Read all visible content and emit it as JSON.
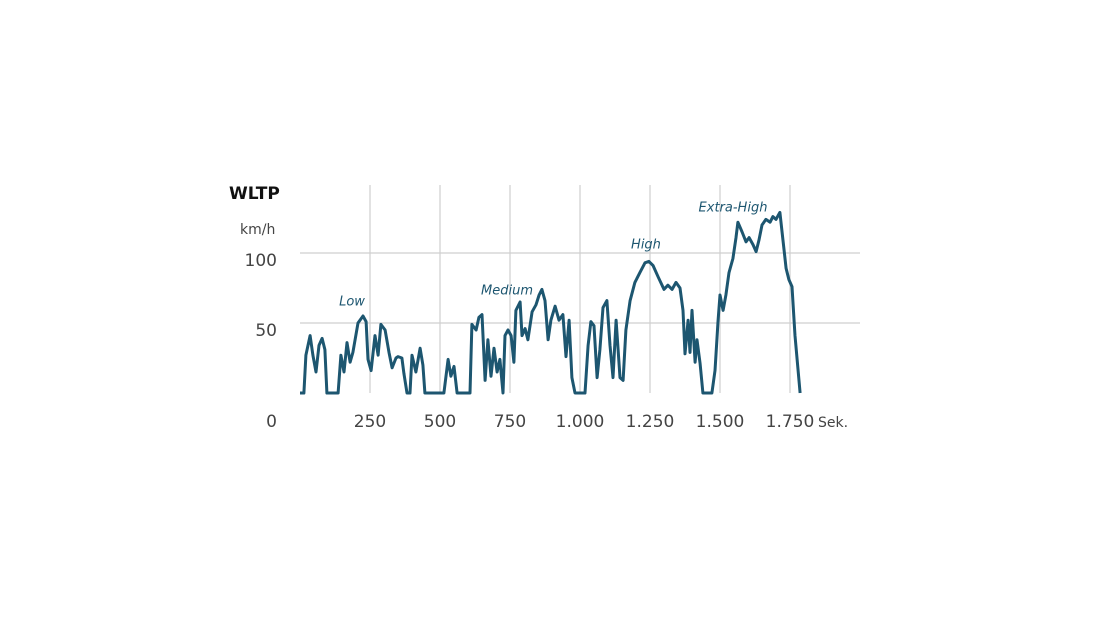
{
  "chart_data": {
    "type": "line",
    "title": "WLTP",
    "y_axis_label": "km/h",
    "x_axis_label": "Sek.",
    "x": [
      0,
      14,
      21,
      36,
      46,
      57,
      68,
      79,
      89,
      96,
      136,
      146,
      157,
      168,
      179,
      189,
      207,
      225,
      236,
      243,
      254,
      268,
      279,
      289,
      304,
      318,
      329,
      343,
      350,
      364,
      371,
      382,
      393,
      400,
      414,
      429,
      439,
      446,
      514,
      529,
      539,
      550,
      561,
      607,
      614,
      629,
      639,
      650,
      661,
      671,
      682,
      693,
      704,
      714,
      725,
      732,
      743,
      754,
      764,
      771,
      786,
      793,
      804,
      814,
      829,
      843,
      854,
      864,
      875,
      886,
      896,
      911,
      925,
      939,
      950,
      961,
      971,
      982,
      1018,
      1029,
      1039,
      1050,
      1061,
      1071,
      1082,
      1096,
      1107,
      1118,
      1129,
      1143,
      1154,
      1164,
      1179,
      1196,
      1214,
      1232,
      1246,
      1261,
      1279,
      1300,
      1314,
      1329,
      1343,
      1357,
      1368,
      1375,
      1386,
      1393,
      1400,
      1411,
      1418,
      1429,
      1439,
      1471,
      1482,
      1493,
      1500,
      1511,
      1521,
      1532,
      1546,
      1557,
      1564,
      1579,
      1593,
      1604,
      1618,
      1629,
      1639,
      1650,
      1664,
      1679,
      1689,
      1700,
      1714,
      1725,
      1736,
      1746,
      1757,
      1768,
      1786
    ],
    "series": [
      {
        "name": "WLTP",
        "color": "#1d5670",
        "values": [
          0,
          0,
          27,
          41,
          27,
          15,
          34,
          39,
          31,
          0,
          0,
          27,
          15,
          36,
          22,
          29,
          50,
          55,
          51,
          24,
          16,
          41,
          27,
          49,
          45,
          29,
          18,
          25,
          26,
          25,
          14,
          0,
          0,
          27,
          15,
          32,
          20,
          0,
          0,
          24,
          12,
          19,
          0,
          0,
          49,
          45,
          54,
          56,
          9,
          38,
          12,
          32,
          15,
          24,
          0,
          41,
          45,
          41,
          22,
          59,
          65,
          41,
          46,
          38,
          58,
          63,
          70,
          74,
          66,
          38,
          52,
          62,
          52,
          56,
          26,
          52,
          11,
          0,
          0,
          34,
          51,
          48,
          11,
          31,
          61,
          66,
          34,
          11,
          52,
          11,
          9,
          45,
          66,
          79,
          86,
          93,
          94,
          91,
          83,
          74,
          77,
          74,
          79,
          75,
          59,
          28,
          52,
          29,
          59,
          22,
          38,
          21,
          0,
          0,
          16,
          51,
          70,
          59,
          70,
          86,
          96,
          111,
          122,
          115,
          108,
          111,
          106,
          101,
          109,
          120,
          124,
          122,
          126,
          124,
          129,
          109,
          89,
          81,
          76,
          41,
          0
        ]
      }
    ],
    "annotations": [
      "Low",
      "Medium",
      "High",
      "Extra-High"
    ],
    "xlim": [
      0,
      2000
    ],
    "xticks": [
      250,
      500,
      750,
      {
        "value": 1000,
        "label": "1.000"
      },
      {
        "value": 1250,
        "label": "1.250"
      },
      {
        "value": 1500,
        "label": "1.500"
      },
      {
        "value": 1750,
        "label": "1.750"
      }
    ],
    "ylim": [
      0,
      150
    ],
    "yticks": [
      0,
      50,
      100
    ],
    "grid": true
  }
}
